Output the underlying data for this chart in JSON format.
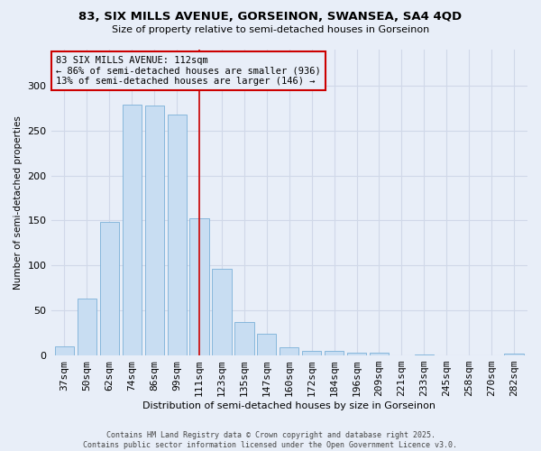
{
  "title_line1": "83, SIX MILLS AVENUE, GORSEINON, SWANSEA, SA4 4QD",
  "title_line2": "Size of property relative to semi-detached houses in Gorseinon",
  "xlabel": "Distribution of semi-detached houses by size in Gorseinon",
  "ylabel": "Number of semi-detached properties",
  "categories": [
    "37sqm",
    "50sqm",
    "62sqm",
    "74sqm",
    "86sqm",
    "99sqm",
    "111sqm",
    "123sqm",
    "135sqm",
    "147sqm",
    "160sqm",
    "172sqm",
    "184sqm",
    "196sqm",
    "209sqm",
    "221sqm",
    "233sqm",
    "245sqm",
    "258sqm",
    "270sqm",
    "282sqm"
  ],
  "values": [
    10,
    63,
    148,
    279,
    278,
    268,
    152,
    96,
    37,
    24,
    9,
    5,
    5,
    3,
    3,
    0,
    1,
    0,
    0,
    0,
    2
  ],
  "bar_color": "#c8ddf2",
  "bar_edge_color": "#7ab0d8",
  "grid_color": "#d0d8e8",
  "background_color": "#e8eef8",
  "vline_x": 6,
  "vline_color": "#cc0000",
  "annotation_text": "83 SIX MILLS AVENUE: 112sqm\n← 86% of semi-detached houses are smaller (936)\n13% of semi-detached houses are larger (146) →",
  "annotation_box_color": "#cc0000",
  "ylim": [
    0,
    340
  ],
  "yticks": [
    0,
    50,
    100,
    150,
    200,
    250,
    300,
    350
  ],
  "footer_line1": "Contains HM Land Registry data © Crown copyright and database right 2025.",
  "footer_line2": "Contains public sector information licensed under the Open Government Licence v3.0."
}
